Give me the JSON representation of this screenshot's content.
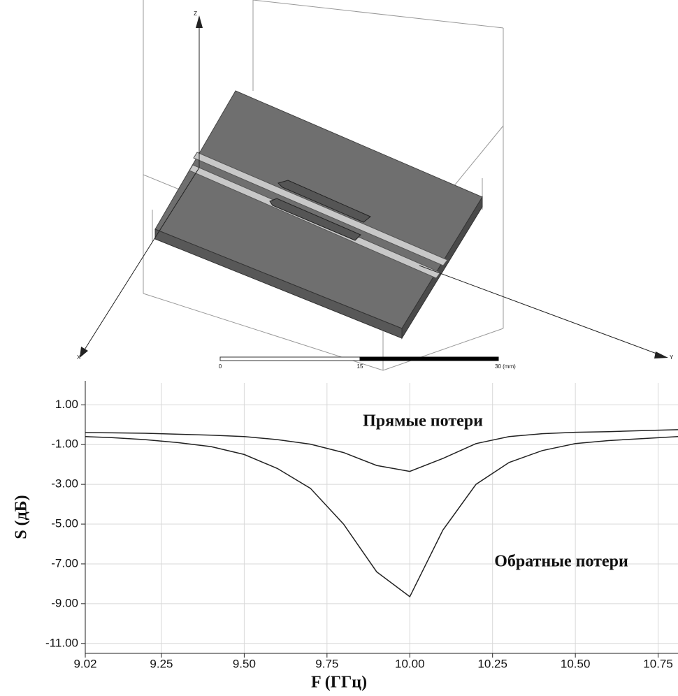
{
  "model": {
    "axis_labels": [
      "Z",
      "Y",
      "X"
    ],
    "scale_labels": [
      "0",
      "15",
      "30 (mm)"
    ]
  },
  "chart_data": {
    "type": "line",
    "x_label": "F (ГГц)",
    "y_label": "S (дБ)",
    "x": [
      9.02,
      9.1,
      9.2,
      9.3,
      9.4,
      9.5,
      9.6,
      9.7,
      9.8,
      9.9,
      10.0,
      10.1,
      10.2,
      10.3,
      10.4,
      10.5,
      10.6,
      10.7,
      10.81
    ],
    "series": [
      {
        "name": "Прямые потери",
        "color": "#222222",
        "values": [
          -0.4,
          -0.41,
          -0.43,
          -0.48,
          -0.53,
          -0.6,
          -0.75,
          -0.98,
          -1.4,
          -2.05,
          -2.35,
          -1.7,
          -0.95,
          -0.6,
          -0.45,
          -0.38,
          -0.35,
          -0.3,
          -0.25
        ]
      },
      {
        "name": "Обратные потери",
        "color": "#222222",
        "values": [
          -0.6,
          -0.65,
          -0.75,
          -0.9,
          -1.1,
          -1.5,
          -2.2,
          -3.2,
          -5.0,
          -7.4,
          -8.65,
          -5.3,
          -3.0,
          -1.9,
          -1.3,
          -0.95,
          -0.8,
          -0.7,
          -0.6
        ]
      }
    ],
    "xlim": [
      9.02,
      10.81
    ],
    "xticks": [
      9.02,
      9.25,
      {
        "value": 9.5,
        "label": "9.50"
      },
      9.75,
      {
        "value": 10.0,
        "label": "10.00"
      },
      10.25,
      {
        "value": 10.5,
        "label": "10.50"
      },
      10.75
    ],
    "ylim": [
      -11.5,
      2.1
    ],
    "yticks": [
      {
        "value": 1,
        "label": "1.00"
      },
      {
        "value": -1,
        "label": "-1.00"
      },
      {
        "value": -3,
        "label": "-3.00"
      },
      {
        "value": -5,
        "label": "-5.00"
      },
      {
        "value": -7,
        "label": "-7.00"
      },
      {
        "value": -9,
        "label": "-9.00"
      },
      {
        "value": -11,
        "label": "-11.00"
      }
    ],
    "grid": true
  }
}
